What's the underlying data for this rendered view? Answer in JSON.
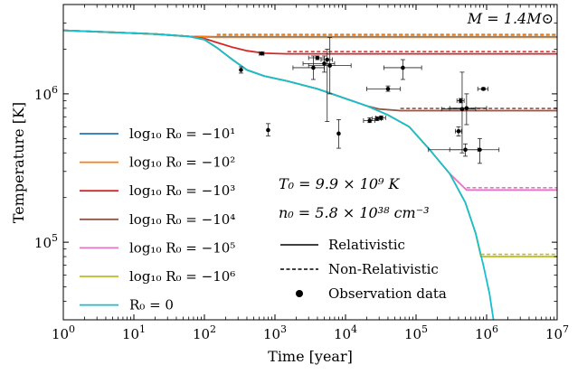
{
  "chart_data": {
    "type": "line",
    "mass_label": "M = 1.4M⊙",
    "xlabel": "Time [year]",
    "ylabel": "Temperature [K]",
    "x_scale": "log",
    "y_scale": "log",
    "xlim": [
      1,
      10000000
    ],
    "ylim": [
      30000,
      4000000
    ],
    "x_ticks": [
      {
        "value": 1,
        "base": "10",
        "exp": "0"
      },
      {
        "value": 10,
        "base": "10",
        "exp": "1"
      },
      {
        "value": 100,
        "base": "10",
        "exp": "2"
      },
      {
        "value": 1000,
        "base": "10",
        "exp": "3"
      },
      {
        "value": 10000,
        "base": "10",
        "exp": "4"
      },
      {
        "value": 100000,
        "base": "10",
        "exp": "5"
      },
      {
        "value": 1000000,
        "base": "10",
        "exp": "6"
      },
      {
        "value": 10000000,
        "base": "10",
        "exp": "7"
      }
    ],
    "y_ticks": [
      {
        "value": 100000,
        "base": "10",
        "exp": "5"
      },
      {
        "value": 1000000,
        "base": "10",
        "exp": "6"
      }
    ],
    "annotations": {
      "t0": "T₀ = 9.9 × 10⁹ K",
      "n0": "n₀ = 5.8 × 10³⁸ cm⁻³"
    },
    "series": [
      {
        "name": "log₁₀ R₀ = −10¹",
        "color": "#1f77b4",
        "points": [
          [
            1,
            2680000
          ],
          [
            20,
            2530000
          ],
          [
            60,
            2440000
          ],
          [
            150,
            2420000
          ],
          [
            10000000,
            2420000
          ]
        ]
      },
      {
        "name": "log₁₀ R₀ = −10²",
        "color": "#ff7f0e",
        "points": [
          [
            1,
            2680000
          ],
          [
            20,
            2530000
          ],
          [
            60,
            2440000
          ],
          [
            150,
            2400000
          ],
          [
            10000000,
            2400000
          ]
        ]
      },
      {
        "name": "log₁₀ R₀ = −10³",
        "color": "#d62728",
        "points": [
          [
            1,
            2680000
          ],
          [
            20,
            2530000
          ],
          [
            60,
            2440000
          ],
          [
            100,
            2360000
          ],
          [
            150,
            2220000
          ],
          [
            250,
            2060000
          ],
          [
            400,
            1950000
          ],
          [
            700,
            1880000
          ],
          [
            1500,
            1860000
          ],
          [
            10000000,
            1860000
          ]
        ]
      },
      {
        "name": "log₁₀ R₀ = −10⁴",
        "color": "#8c564b",
        "points": [
          [
            1,
            2680000
          ],
          [
            20,
            2530000
          ],
          [
            60,
            2440000
          ],
          [
            100,
            2320000
          ],
          [
            150,
            2050000
          ],
          [
            250,
            1700000
          ],
          [
            400,
            1450000
          ],
          [
            700,
            1320000
          ],
          [
            1500,
            1220000
          ],
          [
            4000,
            1080000
          ],
          [
            10000,
            930000
          ],
          [
            20000,
            830000
          ],
          [
            30000,
            790000
          ],
          [
            60000,
            770000
          ],
          [
            10000000,
            770000
          ]
        ]
      },
      {
        "name": "log₁₀ R₀ = −10⁵",
        "color": "#e377c2",
        "points": [
          [
            1,
            2680000
          ],
          [
            20,
            2530000
          ],
          [
            60,
            2440000
          ],
          [
            100,
            2320000
          ],
          [
            150,
            2050000
          ],
          [
            250,
            1700000
          ],
          [
            400,
            1450000
          ],
          [
            700,
            1320000
          ],
          [
            1500,
            1220000
          ],
          [
            4000,
            1080000
          ],
          [
            10000,
            930000
          ],
          [
            20000,
            830000
          ],
          [
            40000,
            720000
          ],
          [
            80000,
            600000
          ],
          [
            150000,
            430000
          ],
          [
            300000,
            290000
          ],
          [
            520000,
            225000
          ],
          [
            10000000,
            225000
          ]
        ]
      },
      {
        "name": "log₁₀ R₀ = −10⁶",
        "color": "#bcbd22",
        "points": [
          [
            1,
            2680000
          ],
          [
            20,
            2530000
          ],
          [
            60,
            2440000
          ],
          [
            100,
            2320000
          ],
          [
            150,
            2050000
          ],
          [
            250,
            1700000
          ],
          [
            400,
            1450000
          ],
          [
            700,
            1320000
          ],
          [
            1500,
            1220000
          ],
          [
            4000,
            1080000
          ],
          [
            10000,
            930000
          ],
          [
            20000,
            830000
          ],
          [
            40000,
            720000
          ],
          [
            80000,
            600000
          ],
          [
            150000,
            430000
          ],
          [
            300000,
            290000
          ],
          [
            500000,
            185000
          ],
          [
            700000,
            115000
          ],
          [
            830000,
            80000
          ],
          [
            10000000,
            80000
          ]
        ]
      },
      {
        "name": "R₀ = 0",
        "color": "#17becf",
        "points": [
          [
            1,
            2680000
          ],
          [
            20,
            2530000
          ],
          [
            60,
            2440000
          ],
          [
            100,
            2320000
          ],
          [
            150,
            2050000
          ],
          [
            250,
            1700000
          ],
          [
            400,
            1450000
          ],
          [
            700,
            1320000
          ],
          [
            1500,
            1220000
          ],
          [
            4000,
            1080000
          ],
          [
            10000,
            930000
          ],
          [
            20000,
            830000
          ],
          [
            40000,
            720000
          ],
          [
            80000,
            600000
          ],
          [
            150000,
            430000
          ],
          [
            300000,
            290000
          ],
          [
            500000,
            185000
          ],
          [
            700000,
            115000
          ],
          [
            900000,
            70000
          ],
          [
            1100000,
            45000
          ],
          [
            1250000,
            30000
          ]
        ]
      }
    ],
    "observations": [
      {
        "x": 330,
        "y": 1450000,
        "xerr": [
          0,
          0
        ],
        "yerr": [
          1380000,
          1520000
        ]
      },
      {
        "x": 650,
        "y": 1870000,
        "xerr": [
          600,
          700
        ],
        "yerr": [
          1830000,
          1910000
        ]
      },
      {
        "x": 800,
        "y": 570000,
        "xerr": [
          0,
          0
        ],
        "yerr": [
          520000,
          630000
        ]
      },
      {
        "x": 3500,
        "y": 1500000,
        "xerr": [
          1800,
          5000
        ],
        "yerr": [
          1250000,
          1800000
        ]
      },
      {
        "x": 4000,
        "y": 1750000,
        "xerr": [
          3000,
          5000
        ],
        "yerr": [
          1700000,
          1800000
        ]
      },
      {
        "x": 5000,
        "y": 1600000,
        "xerr": [
          2500,
          7000
        ],
        "yerr": [
          1400000,
          1800000
        ]
      },
      {
        "x": 5500,
        "y": 1700000,
        "xerr": [
          4500,
          6500
        ],
        "yerr": [
          650000,
          2000000
        ]
      },
      {
        "x": 6000,
        "y": 1550000,
        "xerr": [
          3000,
          12000
        ],
        "yerr": [
          1000000,
          2400000
        ]
      },
      {
        "x": 8000,
        "y": 540000,
        "xerr": [
          0,
          0
        ],
        "yerr": [
          430000,
          670000
        ]
      },
      {
        "x": 40000,
        "y": 1080000,
        "xerr": [
          20000,
          60000
        ],
        "yerr": [
          1040000,
          1130000
        ]
      },
      {
        "x": 65000,
        "y": 1500000,
        "xerr": [
          35000,
          120000
        ],
        "yerr": [
          1250000,
          1700000
        ]
      },
      {
        "x": 22000,
        "y": 660000,
        "xerr": [
          18000,
          26000
        ],
        "yerr": [
          640000,
          690000
        ]
      },
      {
        "x": 28000,
        "y": 680000,
        "xerr": [
          24000,
          32000
        ],
        "yerr": [
          660000,
          700000
        ]
      },
      {
        "x": 32000,
        "y": 690000,
        "xerr": [
          27000,
          37000
        ],
        "yerr": [
          670000,
          710000
        ]
      },
      {
        "x": 400000,
        "y": 560000,
        "xerr": [
          360000,
          440000
        ],
        "yerr": [
          520000,
          600000
        ]
      },
      {
        "x": 430000,
        "y": 900000,
        "xerr": [
          380000,
          480000
        ],
        "yerr": [
          870000,
          930000
        ]
      },
      {
        "x": 450000,
        "y": 790000,
        "xerr": [
          230000,
          700000
        ],
        "yerr": [
          400000,
          1400000
        ]
      },
      {
        "x": 520000,
        "y": 800000,
        "xerr": [
          300000,
          1000000
        ],
        "yerr": [
          620000,
          1000000
        ]
      },
      {
        "x": 500000,
        "y": 420000,
        "xerr": [
          150000,
          750000
        ],
        "yerr": [
          380000,
          460000
        ]
      },
      {
        "x": 900000,
        "y": 1080000,
        "xerr": [
          750000,
          1050000
        ],
        "yerr": [
          1060000,
          1100000
        ]
      },
      {
        "x": 800000,
        "y": 420000,
        "xerr": [
          300000,
          1500000
        ],
        "yerr": [
          340000,
          500000
        ]
      }
    ],
    "style_legend": [
      {
        "label": "Relativistic",
        "style": "solid"
      },
      {
        "label": "Non-Relativistic",
        "style": "dashed"
      },
      {
        "label": "Observation data",
        "style": "dot"
      }
    ],
    "grid": false,
    "legend_position": "center-left"
  }
}
